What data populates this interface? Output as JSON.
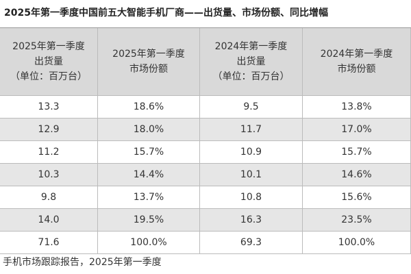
{
  "title": "2025年第一季度中国前五大智能手机厂商——出货量、市场份额、同比增幅",
  "table": {
    "headers": [
      [
        "2025年第一季度",
        "出货量",
        "（单位：百万台）"
      ],
      [
        "2025年第一季度",
        "市场份额"
      ],
      [
        "2024年第一季度",
        "出货量",
        "（单位：百万台）"
      ],
      [
        "2024年第一季度",
        "市场份额"
      ]
    ],
    "rows": [
      [
        "13.3",
        "18.6%",
        "9.5",
        "13.8%"
      ],
      [
        "12.9",
        "18.0%",
        "11.7",
        "17.0%"
      ],
      [
        "11.2",
        "15.7%",
        "10.9",
        "15.7%"
      ],
      [
        "10.3",
        "14.4%",
        "10.1",
        "14.6%"
      ],
      [
        "9.8",
        "13.7%",
        "10.8",
        "15.6%"
      ],
      [
        "14.0",
        "19.5%",
        "16.3",
        "23.5%"
      ],
      [
        "71.6",
        "100.0%",
        "69.3",
        "100.0%"
      ]
    ]
  },
  "footer": "手机市场跟踪报告，2025年第一季度"
}
